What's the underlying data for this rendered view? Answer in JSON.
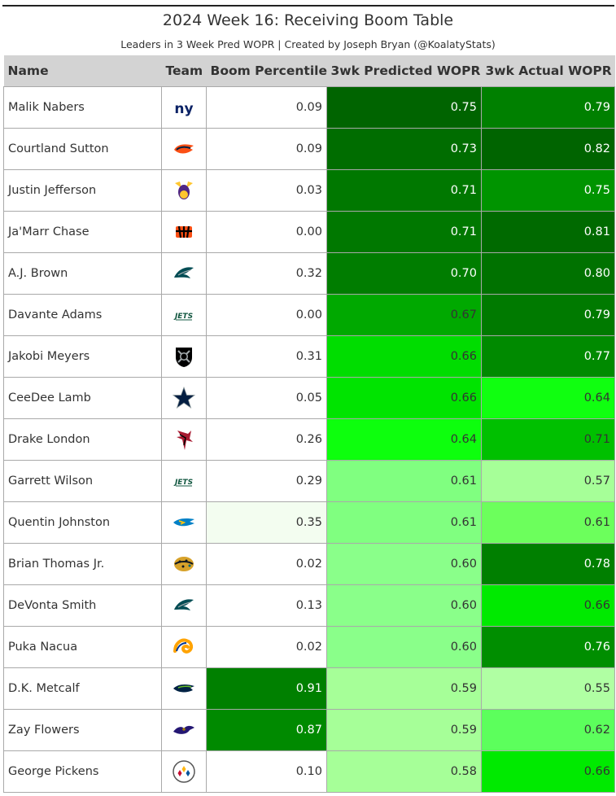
{
  "header": {
    "title": "2024 Week 16: Receiving Boom Table",
    "subtitle": "Leaders in 3 Week Pred WOPR | Created by Joseph Bryan (@KoalatyStats)"
  },
  "columns": {
    "name": "Name",
    "team": "Team",
    "boom": "Boom Percentile",
    "pred": "3wk Predicted WOPR",
    "actual": "3wk Actual WOPR"
  },
  "rows": [
    {
      "name": "Malik Nabers",
      "team_logo": "giants-logo",
      "boom": "0.09",
      "pred": "0.75",
      "actual": "0.79",
      "boom_bg": "#ffffff",
      "boom_fg": "#333333",
      "pred_bg": "#006400",
      "pred_fg": "#ffffff",
      "actual_bg": "#008000",
      "actual_fg": "#ffffff"
    },
    {
      "name": "Courtland Sutton",
      "team_logo": "broncos-logo",
      "boom": "0.09",
      "pred": "0.73",
      "actual": "0.82",
      "boom_bg": "#ffffff",
      "boom_fg": "#333333",
      "pred_bg": "#006d00",
      "pred_fg": "#ffffff",
      "actual_bg": "#006400",
      "actual_fg": "#ffffff"
    },
    {
      "name": "Justin Jefferson",
      "team_logo": "vikings-logo",
      "boom": "0.03",
      "pred": "0.71",
      "actual": "0.75",
      "boom_bg": "#ffffff",
      "boom_fg": "#333333",
      "pred_bg": "#007800",
      "pred_fg": "#ffffff",
      "actual_bg": "#009400",
      "actual_fg": "#ffffff"
    },
    {
      "name": "Ja'Marr Chase",
      "team_logo": "bengals-logo",
      "boom": "0.00",
      "pred": "0.71",
      "actual": "0.81",
      "boom_bg": "#ffffff",
      "boom_fg": "#333333",
      "pred_bg": "#007800",
      "pred_fg": "#ffffff",
      "actual_bg": "#006a00",
      "actual_fg": "#ffffff"
    },
    {
      "name": "A.J. Brown",
      "team_logo": "eagles-logo",
      "boom": "0.32",
      "pred": "0.70",
      "actual": "0.80",
      "boom_bg": "#ffffff",
      "boom_fg": "#333333",
      "pred_bg": "#007d00",
      "pred_fg": "#ffffff",
      "actual_bg": "#007200",
      "actual_fg": "#ffffff"
    },
    {
      "name": "Davante Adams",
      "team_logo": "jets-logo",
      "boom": "0.00",
      "pred": "0.67",
      "actual": "0.79",
      "boom_bg": "#ffffff",
      "boom_fg": "#333333",
      "pred_bg": "#00a900",
      "pred_fg": "#333333",
      "actual_bg": "#007a00",
      "actual_fg": "#ffffff"
    },
    {
      "name": "Jakobi Meyers",
      "team_logo": "raiders-logo",
      "boom": "0.31",
      "pred": "0.66",
      "actual": "0.77",
      "boom_bg": "#ffffff",
      "boom_fg": "#333333",
      "pred_bg": "#00dd00",
      "pred_fg": "#333333",
      "actual_bg": "#008a00",
      "actual_fg": "#ffffff"
    },
    {
      "name": "CeeDee Lamb",
      "team_logo": "cowboys-logo",
      "boom": "0.05",
      "pred": "0.66",
      "actual": "0.64",
      "boom_bg": "#ffffff",
      "boom_fg": "#333333",
      "pred_bg": "#00e400",
      "pred_fg": "#333333",
      "actual_bg": "#10ff10",
      "actual_fg": "#333333"
    },
    {
      "name": "Drake London",
      "team_logo": "falcons-logo",
      "boom": "0.26",
      "pred": "0.64",
      "actual": "0.71",
      "boom_bg": "#ffffff",
      "boom_fg": "#333333",
      "pred_bg": "#0dff0d",
      "pred_fg": "#333333",
      "actual_bg": "#00c000",
      "actual_fg": "#333333"
    },
    {
      "name": "Garrett Wilson",
      "team_logo": "jets-logo",
      "boom": "0.29",
      "pred": "0.61",
      "actual": "0.57",
      "boom_bg": "#ffffff",
      "boom_fg": "#333333",
      "pred_bg": "#80ff80",
      "pred_fg": "#333333",
      "actual_bg": "#a6ff98",
      "actual_fg": "#333333"
    },
    {
      "name": "Quentin Johnston",
      "team_logo": "chargers-logo",
      "boom": "0.35",
      "pred": "0.61",
      "actual": "0.61",
      "boom_bg": "#f3fdf0",
      "boom_fg": "#333333",
      "pred_bg": "#80ff80",
      "pred_fg": "#333333",
      "actual_bg": "#6cff5c",
      "actual_fg": "#333333"
    },
    {
      "name": "Brian Thomas Jr.",
      "team_logo": "jaguars-logo",
      "boom": "0.02",
      "pred": "0.60",
      "actual": "0.78",
      "boom_bg": "#ffffff",
      "boom_fg": "#333333",
      "pred_bg": "#8aff8a",
      "pred_fg": "#333333",
      "actual_bg": "#007f00",
      "actual_fg": "#ffffff"
    },
    {
      "name": "DeVonta Smith",
      "team_logo": "eagles-logo",
      "boom": "0.13",
      "pred": "0.60",
      "actual": "0.66",
      "boom_bg": "#ffffff",
      "boom_fg": "#333333",
      "pred_bg": "#8aff8a",
      "pred_fg": "#333333",
      "actual_bg": "#00ea00",
      "actual_fg": "#333333"
    },
    {
      "name": "Puka Nacua",
      "team_logo": "rams-logo",
      "boom": "0.02",
      "pred": "0.60",
      "actual": "0.76",
      "boom_bg": "#ffffff",
      "boom_fg": "#333333",
      "pred_bg": "#8aff8a",
      "pred_fg": "#333333",
      "actual_bg": "#008e00",
      "actual_fg": "#ffffff"
    },
    {
      "name": "D.K. Metcalf",
      "team_logo": "seahawks-logo",
      "boom": "0.91",
      "pred": "0.59",
      "actual": "0.55",
      "boom_bg": "#008000",
      "boom_fg": "#ffffff",
      "pred_bg": "#a6ff98",
      "pred_fg": "#333333",
      "actual_bg": "#b0ffa3",
      "actual_fg": "#333333"
    },
    {
      "name": "Zay Flowers",
      "team_logo": "ravens-logo",
      "boom": "0.87",
      "pred": "0.59",
      "actual": "0.62",
      "boom_bg": "#008a00",
      "boom_fg": "#ffffff",
      "pred_bg": "#a6ff98",
      "pred_fg": "#333333",
      "actual_bg": "#5cff5c",
      "actual_fg": "#333333"
    },
    {
      "name": "George Pickens",
      "team_logo": "steelers-logo",
      "boom": "0.10",
      "pred": "0.58",
      "actual": "0.66",
      "boom_bg": "#ffffff",
      "boom_fg": "#333333",
      "pred_bg": "#a6ff98",
      "pred_fg": "#333333",
      "actual_bg": "#00ea00",
      "actual_fg": "#333333"
    }
  ]
}
